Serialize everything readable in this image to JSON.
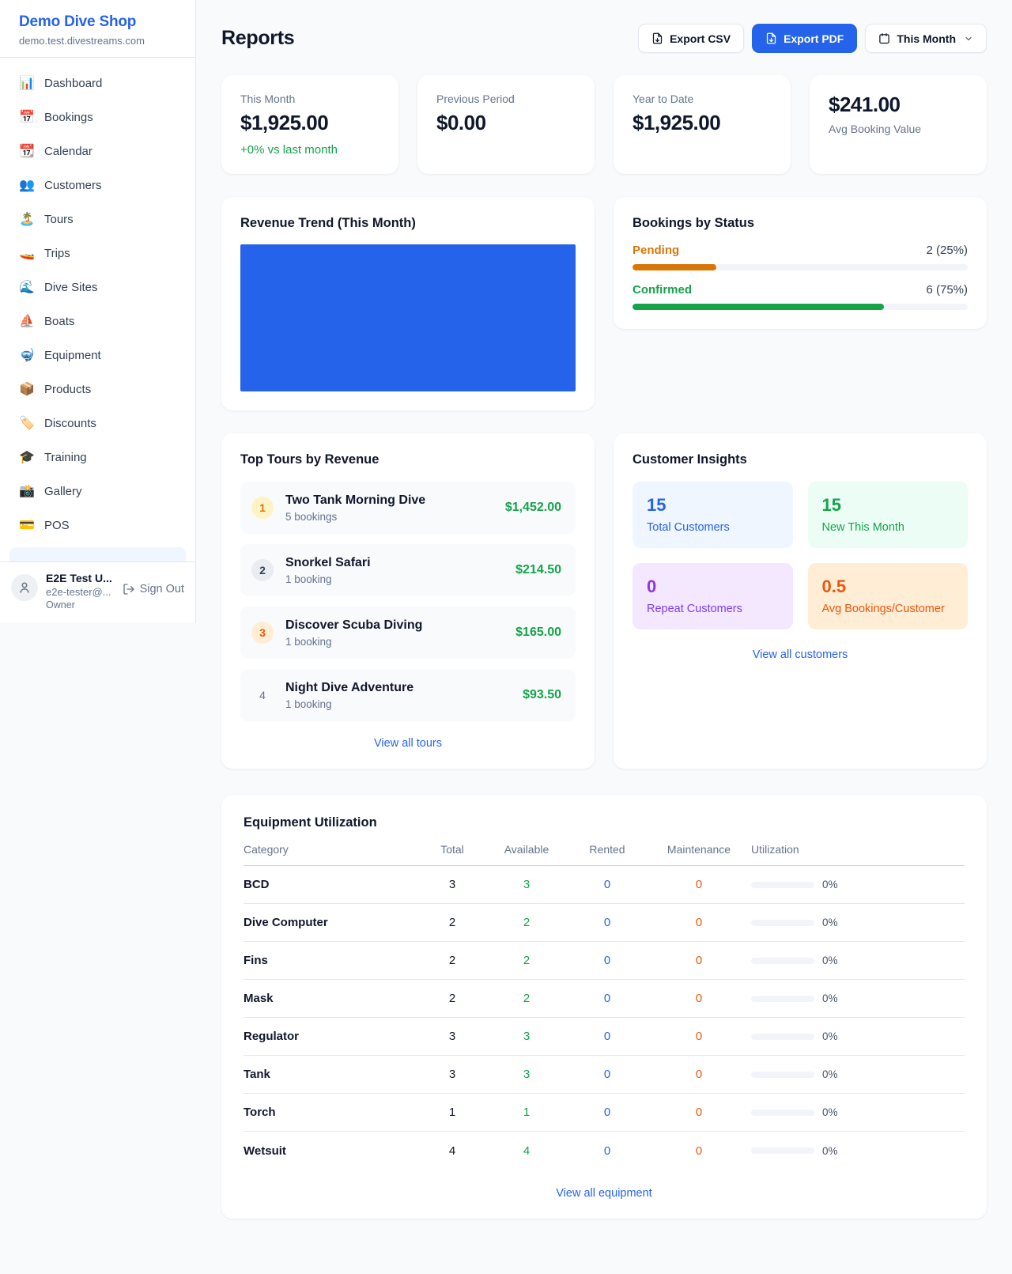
{
  "sidebar": {
    "brand": {
      "name": "Demo Dive Shop",
      "domain": "demo.test.divestreams.com"
    },
    "items": [
      {
        "icon": "📊",
        "label": "Dashboard"
      },
      {
        "icon": "📅",
        "label": "Bookings"
      },
      {
        "icon": "📆",
        "label": "Calendar"
      },
      {
        "icon": "👥",
        "label": "Customers"
      },
      {
        "icon": "🏝️",
        "label": "Tours"
      },
      {
        "icon": "🚤",
        "label": "Trips"
      },
      {
        "icon": "🌊",
        "label": "Dive Sites"
      },
      {
        "icon": "⛵",
        "label": "Boats"
      },
      {
        "icon": "🤿",
        "label": "Equipment"
      },
      {
        "icon": "📦",
        "label": "Products"
      },
      {
        "icon": "🏷️",
        "label": "Discounts"
      },
      {
        "icon": "🎓",
        "label": "Training"
      },
      {
        "icon": "📸",
        "label": "Gallery"
      },
      {
        "icon": "💳",
        "label": "POS"
      }
    ],
    "user": {
      "name": "E2E Test U...",
      "email": "e2e-tester@...",
      "role": "Owner",
      "sign_out_label": "Sign Out"
    }
  },
  "header": {
    "title": "Reports",
    "export_csv_label": "Export CSV",
    "export_pdf_label": "Export PDF",
    "period_label": "This Month"
  },
  "stats": {
    "this_month": {
      "label": "This Month",
      "value": "$1,925.00",
      "delta": "+0% vs last month"
    },
    "previous_period": {
      "label": "Previous Period",
      "value": "$0.00"
    },
    "year_to_date": {
      "label": "Year to Date",
      "value": "$1,925.00"
    },
    "avg_booking": {
      "value": "$241.00",
      "label": "Avg Booking Value"
    }
  },
  "revenue_trend": {
    "title": "Revenue Trend (This Month)",
    "fill_color": "#2563eb",
    "fill_pct": 100
  },
  "bookings_by_status": {
    "title": "Bookings by Status",
    "rows": [
      {
        "label": "Pending",
        "count_text": "2 (25%)",
        "pct": 25
      },
      {
        "label": "Confirmed",
        "count_text": "6 (75%)",
        "pct": 75
      }
    ]
  },
  "top_tours": {
    "title": "Top Tours by Revenue",
    "rows": [
      {
        "rank": "1",
        "name": "Two Tank Morning Dive",
        "bookings": "5 bookings",
        "amount": "$1,452.00"
      },
      {
        "rank": "2",
        "name": "Snorkel Safari",
        "bookings": "1 booking",
        "amount": "$214.50"
      },
      {
        "rank": "3",
        "name": "Discover Scuba Diving",
        "bookings": "1 booking",
        "amount": "$165.00"
      },
      {
        "rank": "4",
        "name": "Night Dive Adventure",
        "bookings": "1 booking",
        "amount": "$93.50"
      }
    ],
    "view_all_label": "View all tours"
  },
  "customer_insights": {
    "title": "Customer Insights",
    "tiles": [
      {
        "value": "15",
        "label": "Total Customers",
        "theme": "blue"
      },
      {
        "value": "15",
        "label": "New This Month",
        "theme": "green"
      },
      {
        "value": "0",
        "label": "Repeat Customers",
        "theme": "purple"
      },
      {
        "value": "0.5",
        "label": "Avg Bookings/Customer",
        "theme": "orange"
      }
    ],
    "view_all_label": "View all customers"
  },
  "equipment": {
    "title": "Equipment Utilization",
    "columns": [
      "Category",
      "Total",
      "Available",
      "Rented",
      "Maintenance",
      "Utilization"
    ],
    "rows": [
      {
        "category": "BCD",
        "total": "3",
        "available": "3",
        "rented": "0",
        "maintenance": "0",
        "utilization": "0%",
        "utilization_pct": 0
      },
      {
        "category": "Dive Computer",
        "total": "2",
        "available": "2",
        "rented": "0",
        "maintenance": "0",
        "utilization": "0%",
        "utilization_pct": 0
      },
      {
        "category": "Fins",
        "total": "2",
        "available": "2",
        "rented": "0",
        "maintenance": "0",
        "utilization": "0%",
        "utilization_pct": 0
      },
      {
        "category": "Mask",
        "total": "2",
        "available": "2",
        "rented": "0",
        "maintenance": "0",
        "utilization": "0%",
        "utilization_pct": 0
      },
      {
        "category": "Regulator",
        "total": "3",
        "available": "3",
        "rented": "0",
        "maintenance": "0",
        "utilization": "0%",
        "utilization_pct": 0
      },
      {
        "category": "Tank",
        "total": "3",
        "available": "3",
        "rented": "0",
        "maintenance": "0",
        "utilization": "0%",
        "utilization_pct": 0
      },
      {
        "category": "Torch",
        "total": "1",
        "available": "1",
        "rented": "0",
        "maintenance": "0",
        "utilization": "0%",
        "utilization_pct": 0
      },
      {
        "category": "Wetsuit",
        "total": "4",
        "available": "4",
        "rented": "0",
        "maintenance": "0",
        "utilization": "0%",
        "utilization_pct": 0
      }
    ],
    "view_all_label": "View all equipment"
  },
  "colors": {
    "accent": "#2563eb",
    "green": "#16a34a",
    "pending_orange": "#d97706",
    "maintenance_orange": "#ea580c"
  }
}
